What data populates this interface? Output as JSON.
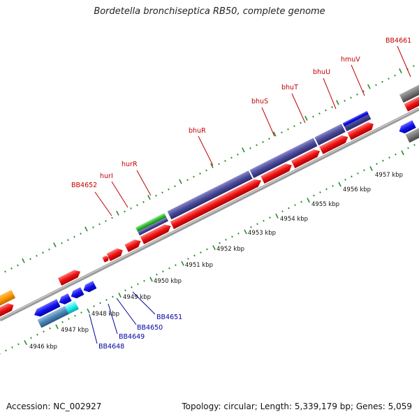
{
  "title": "Bordetella bronchiseptica RB50, complete genome",
  "footer": {
    "accession": "Accession: NC_002927",
    "info": "Topology: circular; Length: 5,339,179 bp; Genes: 5,059"
  },
  "colors": {
    "forward_gene": "#ee1111",
    "reverse_gene": "#1111ee",
    "operon": "#4a4a9a",
    "backbone": "#999999",
    "tick": "#2a8a2a"
  },
  "kbp_labels": [
    "4946 kbp",
    "4947 kbp",
    "4948 kbp",
    "4949 kbp",
    "4950 kbp",
    "4951 kbp",
    "4952 kbp",
    "4953 kbp",
    "4954 kbp",
    "4955 kbp",
    "4956 kbp",
    "4957 kbp"
  ],
  "gene_labels_top": [
    "BB4652",
    "hurI",
    "hurR",
    "bhuR",
    "bhuS",
    "bhuT",
    "bhuU",
    "hmuV",
    "BB4661"
  ],
  "gene_labels_bottom": [
    "BB4648",
    "BB4649",
    "BB4650",
    "BB4651"
  ]
}
